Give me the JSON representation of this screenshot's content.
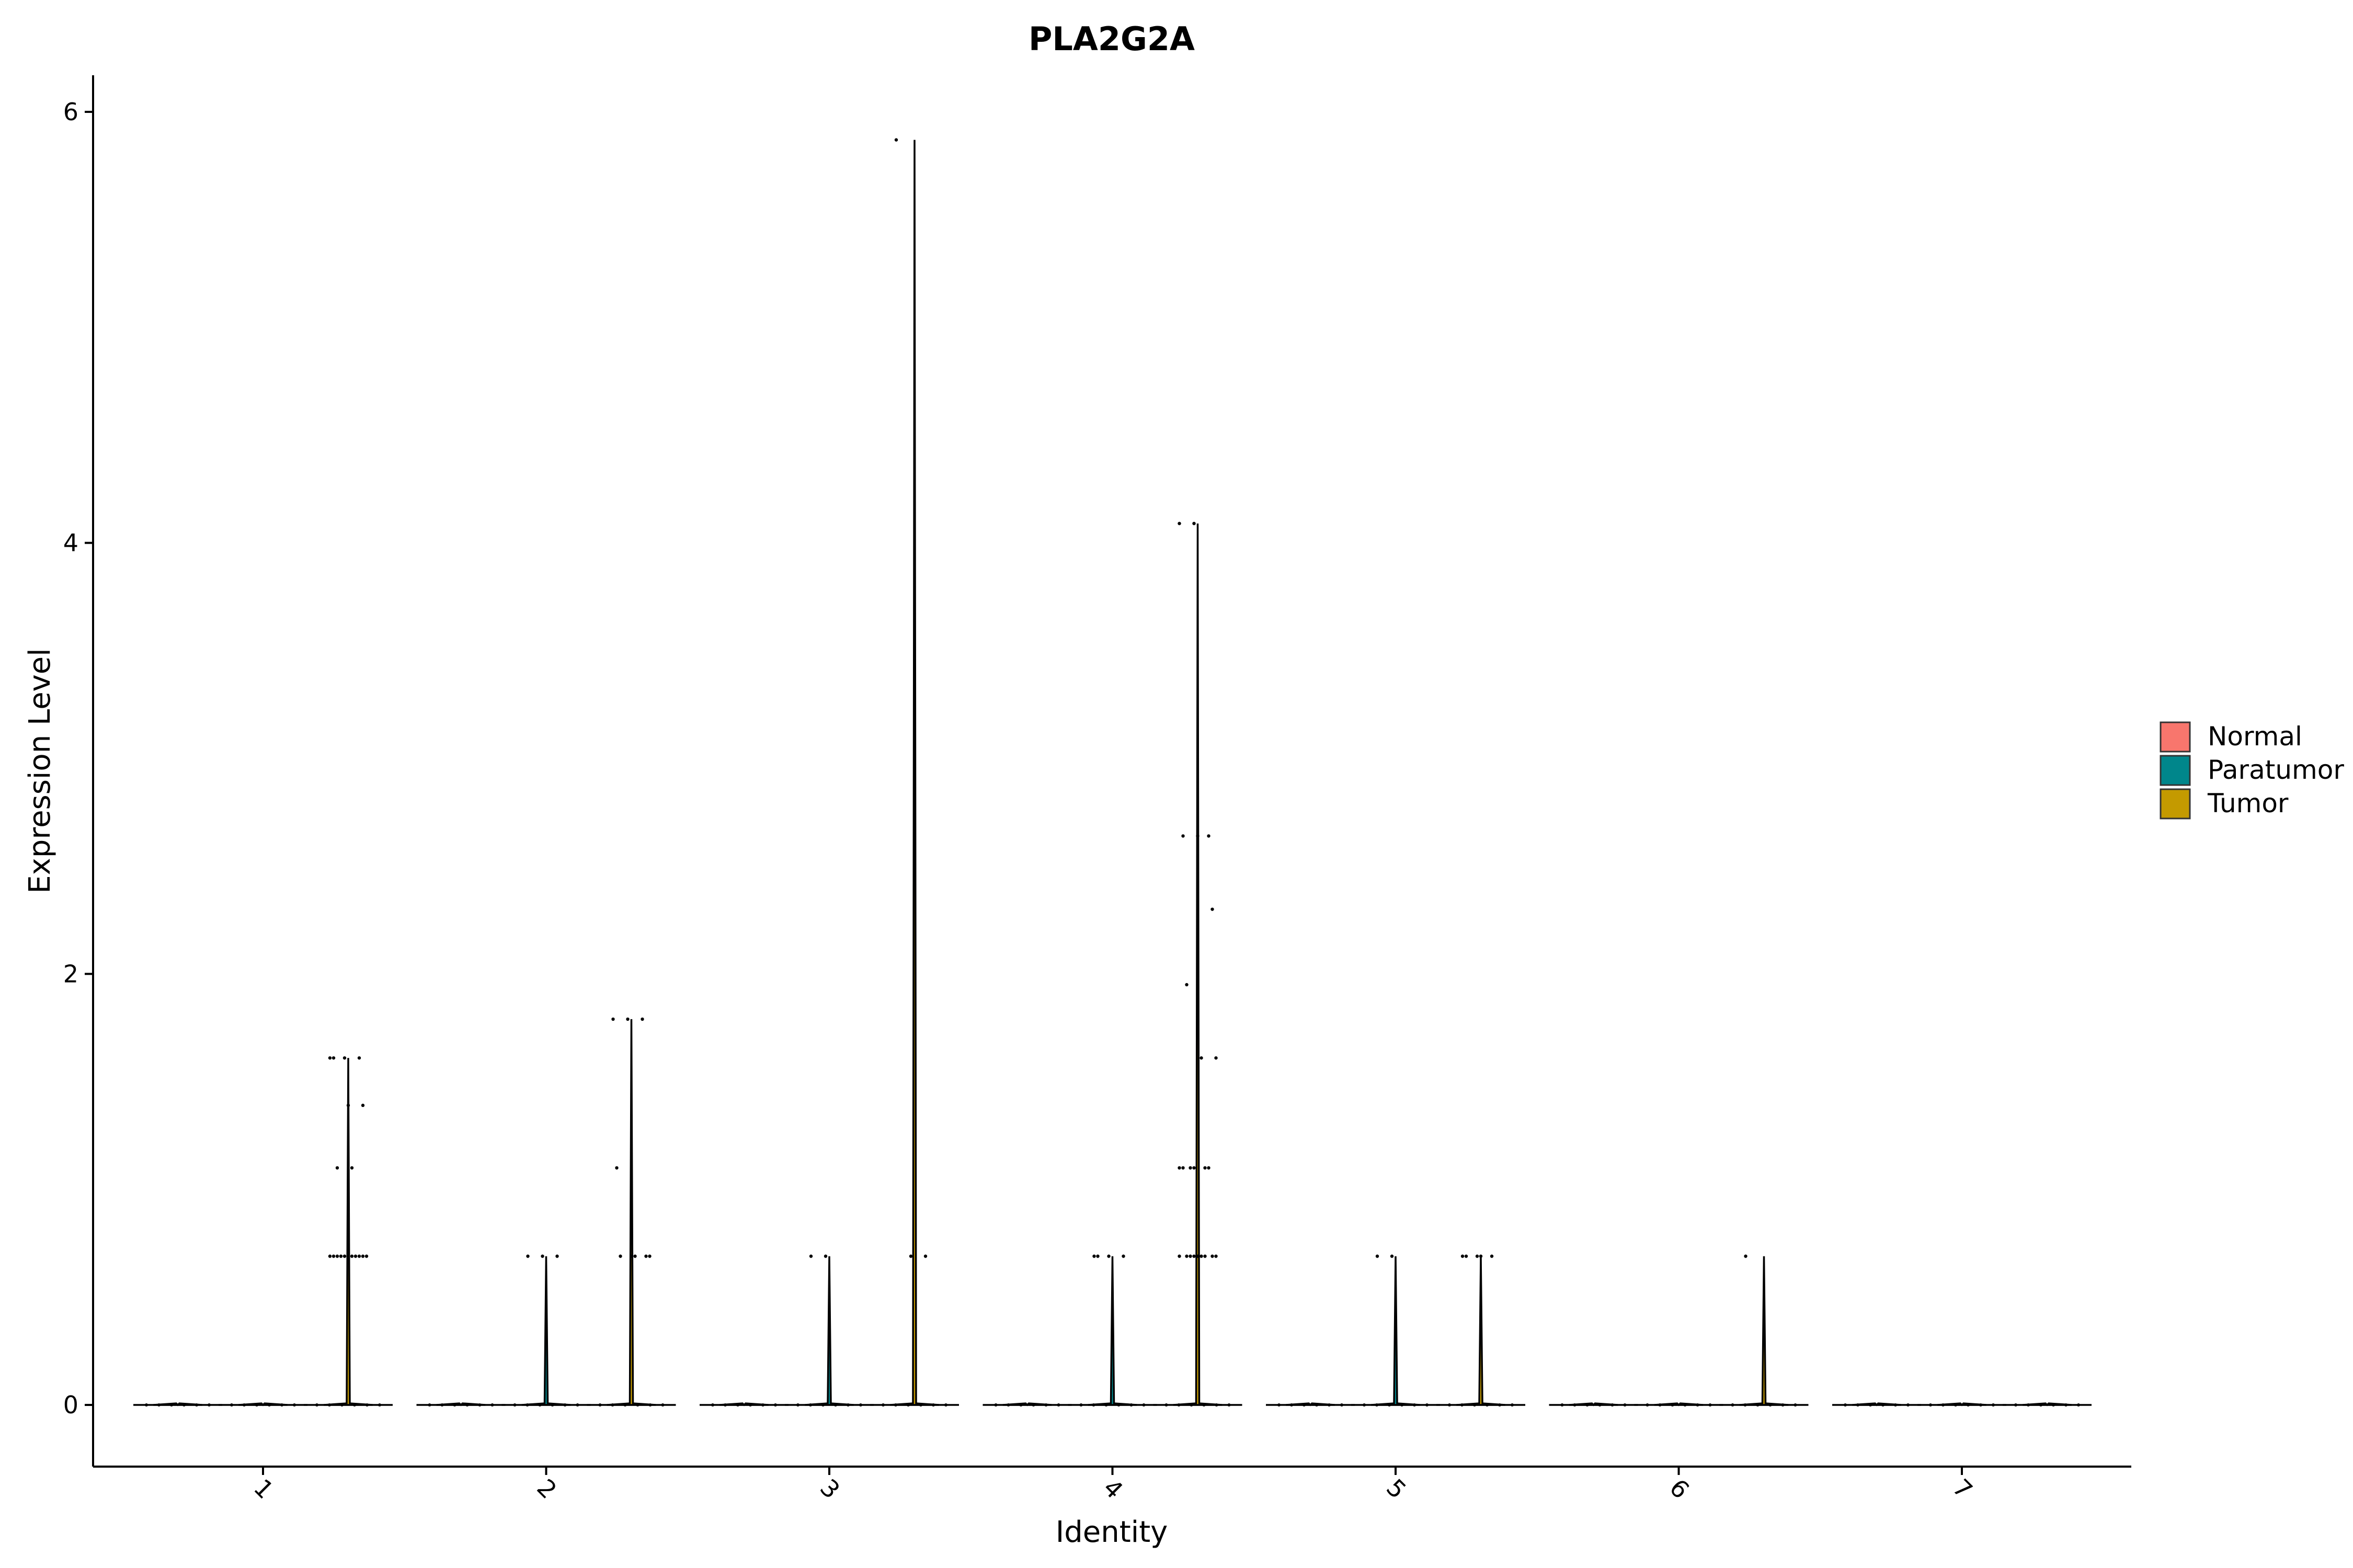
{
  "chart_data": {
    "type": "violin",
    "title": "PLA2G2A",
    "xlabel": "Identity",
    "ylabel": "Expression Level",
    "ylim": [
      -0.3,
      6.2
    ],
    "yticks": [
      0,
      2,
      4,
      6
    ],
    "grid": false,
    "legend_position": "right",
    "categories": [
      "1",
      "2",
      "3",
      "4",
      "5",
      "6",
      "7"
    ],
    "series": [
      {
        "name": "Normal",
        "color": "#F8766D",
        "max": [
          0,
          0,
          0,
          0,
          0,
          0,
          0
        ],
        "points": [
          [],
          [],
          [],
          [],
          [],
          [],
          []
        ]
      },
      {
        "name": "Paratumor",
        "color": "#00868B",
        "max": [
          0,
          0.69,
          0.69,
          0.69,
          0.69,
          0,
          0
        ],
        "points": [
          [],
          [
            0.69,
            0.69,
            0.69
          ],
          [
            0.69,
            0.69
          ],
          [
            0.69,
            0.69,
            0.69,
            0.69
          ],
          [
            0.69,
            0.69
          ],
          [],
          []
        ]
      },
      {
        "name": "Tumor",
        "color": "#C49A00",
        "max": [
          1.61,
          1.79,
          5.87,
          4.09,
          0.69,
          0.69,
          0
        ],
        "points": [
          [
            1.61,
            1.61,
            1.61,
            1.61,
            1.39,
            1.39,
            1.1,
            1.1,
            0.69,
            0.69,
            0.69,
            0.69,
            0.69,
            0.69,
            0.69,
            0.69,
            0.69,
            0.69,
            0.69
          ],
          [
            1.79,
            1.79,
            1.79,
            1.1,
            0.69,
            0.69,
            0.69,
            0.69,
            0.69
          ],
          [
            5.87,
            0.69,
            0.69
          ],
          [
            4.09,
            4.09,
            2.64,
            2.64,
            2.64,
            2.3,
            1.95,
            1.61,
            1.61,
            1.1,
            1.1,
            1.1,
            1.1,
            1.1,
            1.1,
            0.69,
            0.69,
            0.69,
            0.69,
            0.69,
            0.69,
            0.69,
            0.69,
            0.69
          ],
          [
            0.69,
            0.69,
            0.69,
            0.69,
            0.69
          ],
          [
            0.69
          ],
          []
        ]
      }
    ]
  }
}
